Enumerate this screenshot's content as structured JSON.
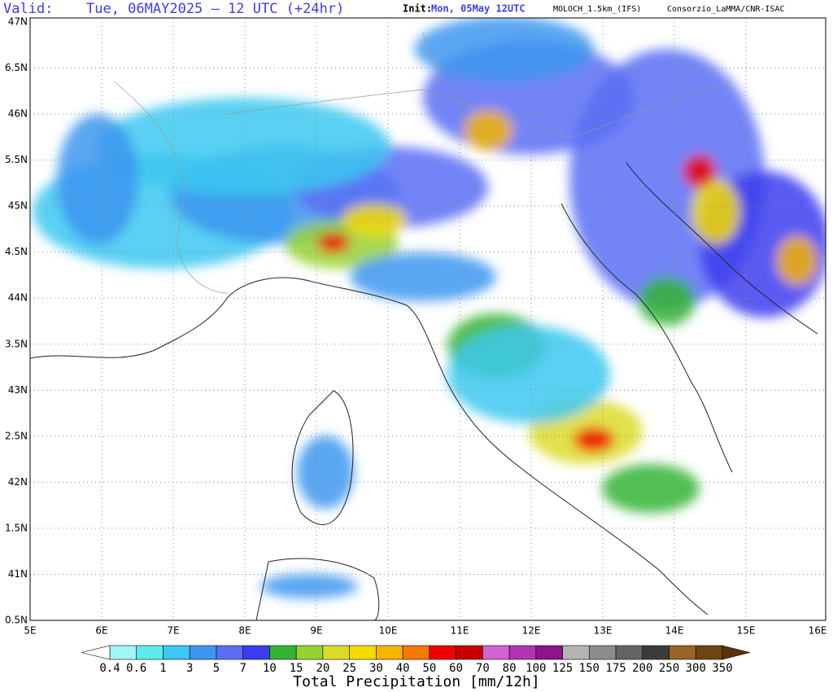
{
  "header": {
    "valid_label": "Valid:",
    "valid": "Tue, 06MAY2025 – 12 UTC (+24hr)",
    "init_label": "Init:",
    "init": "Mon, 05May 12UTC",
    "model": "MOLOCH_1.5km_(IFS)",
    "credit": "Consorzio_LaMMA/CNR-ISAC"
  },
  "map": {
    "lat_labels": [
      "47N",
      "6.5N",
      "46N",
      "5.5N",
      "45N",
      "4.5N",
      "44N",
      "3.5N",
      "43N",
      "2.5N",
      "42N",
      "1.5N",
      "41N",
      "0.5N"
    ],
    "lon_labels": [
      "5E",
      "6E",
      "7E",
      "8E",
      "9E",
      "10E",
      "11E",
      "12E",
      "13E",
      "14E",
      "15E",
      "16E"
    ]
  },
  "colorbar": {
    "labels": [
      "0.4",
      "0.6",
      "1",
      "3",
      "5",
      "7",
      "10",
      "15",
      "20",
      "25",
      "30",
      "40",
      "50",
      "60",
      "70",
      "80",
      "100",
      "125",
      "150",
      "175",
      "200",
      "250",
      "300",
      "350"
    ],
    "colors": [
      "#a0f5f5",
      "#5cecec",
      "#3cc8f0",
      "#3c96f0",
      "#5a6ef5",
      "#3c3cf0",
      "#32b432",
      "#96d232",
      "#dcdc28",
      "#f5dc00",
      "#f5b400",
      "#f57800",
      "#f00000",
      "#c80000",
      "#d264d2",
      "#b432b4",
      "#8c148c",
      "#b4b4b4",
      "#8c8c8c",
      "#646464",
      "#3c3c3c",
      "#966428",
      "#6e4614"
    ],
    "under_color": "#ffffff",
    "over_color": "#5a320a",
    "title": "Total Precipitation [mm/12h]"
  }
}
